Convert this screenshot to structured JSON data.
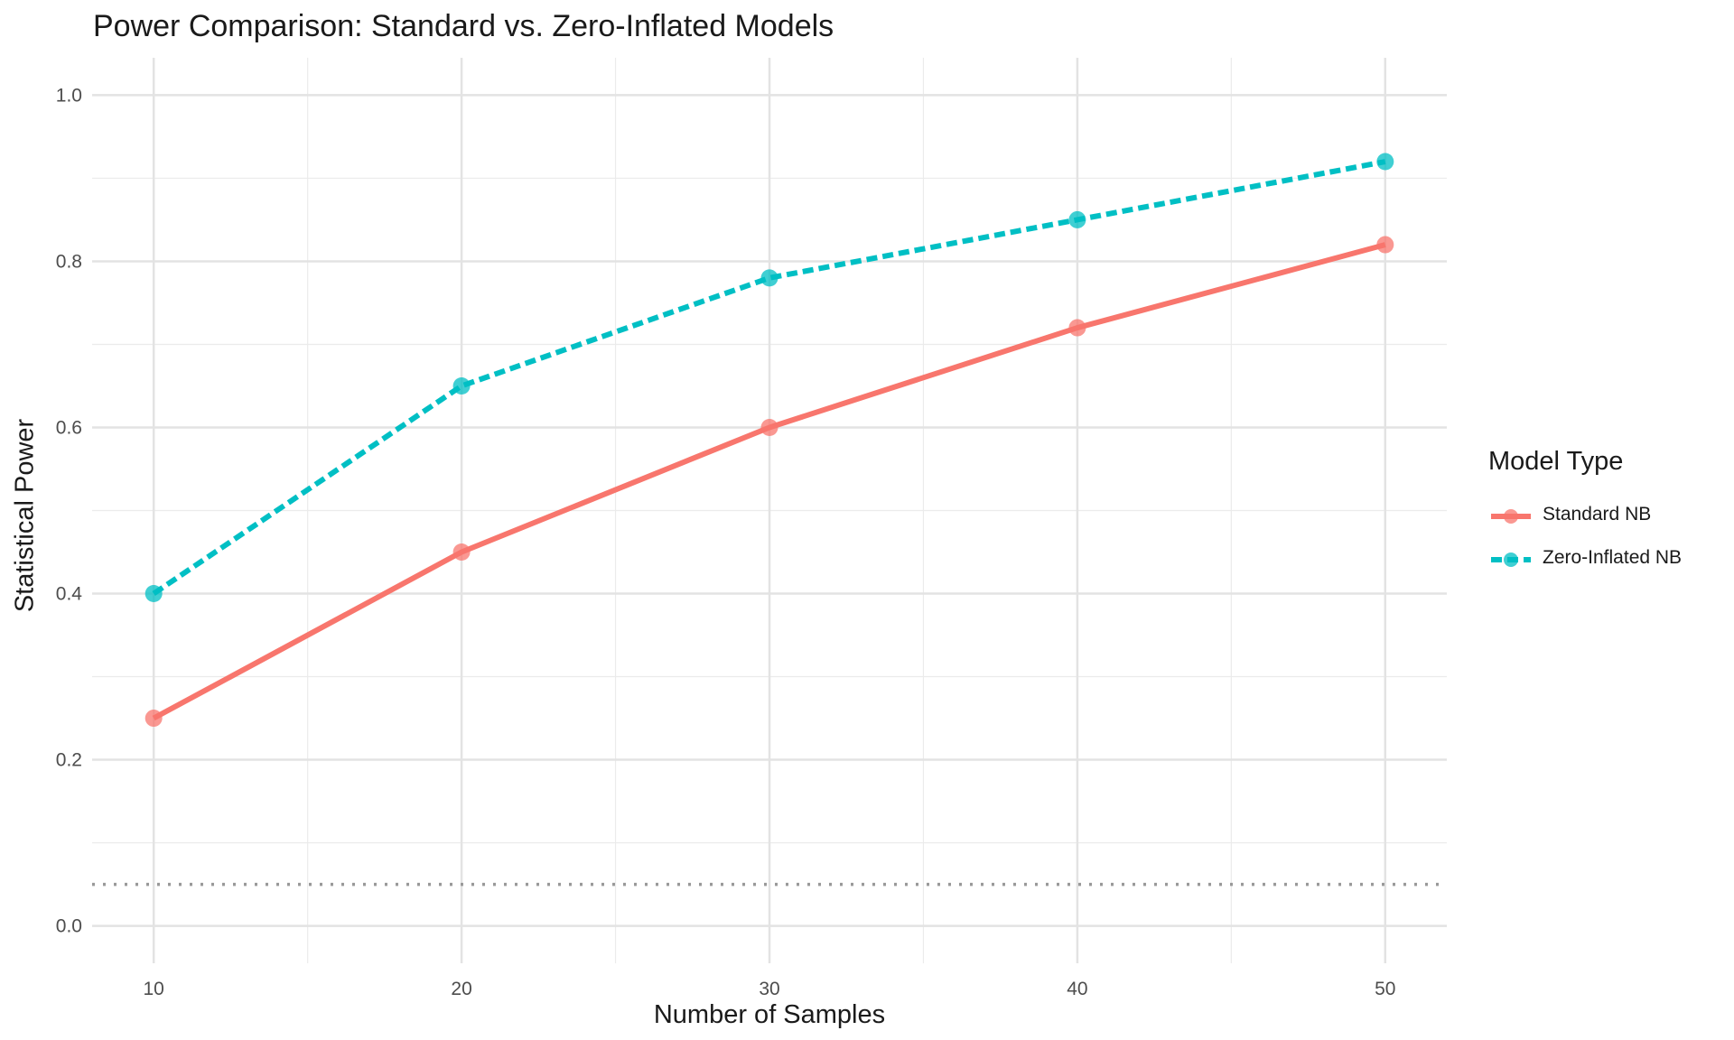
{
  "chart_data": {
    "type": "line",
    "title": "Power Comparison: Standard vs. Zero-Inflated Models",
    "xlabel": "Number of Samples",
    "ylabel": "Statistical Power",
    "x": [
      10,
      20,
      30,
      40,
      50
    ],
    "x_ticks": [
      "10",
      "20",
      "30",
      "40",
      "50"
    ],
    "y_ticks": [
      "0.0",
      "0.2",
      "0.4",
      "0.6",
      "0.8",
      "1.0"
    ],
    "xlim": [
      8,
      52
    ],
    "ylim": [
      -0.045,
      1.045
    ],
    "grid": true,
    "reference_line": {
      "y": 0.05,
      "style": "dotted",
      "color": "#999999"
    },
    "legend": {
      "title": "Model Type",
      "position": "right"
    },
    "series": [
      {
        "name": "Standard NB",
        "values": [
          0.25,
          0.45,
          0.6,
          0.72,
          0.82
        ],
        "color": "#F8766D",
        "line_style": "solid"
      },
      {
        "name": "Zero-Inflated NB",
        "values": [
          0.4,
          0.65,
          0.78,
          0.85,
          0.92
        ],
        "color": "#00BFC4",
        "line_style": "dashed"
      }
    ]
  }
}
